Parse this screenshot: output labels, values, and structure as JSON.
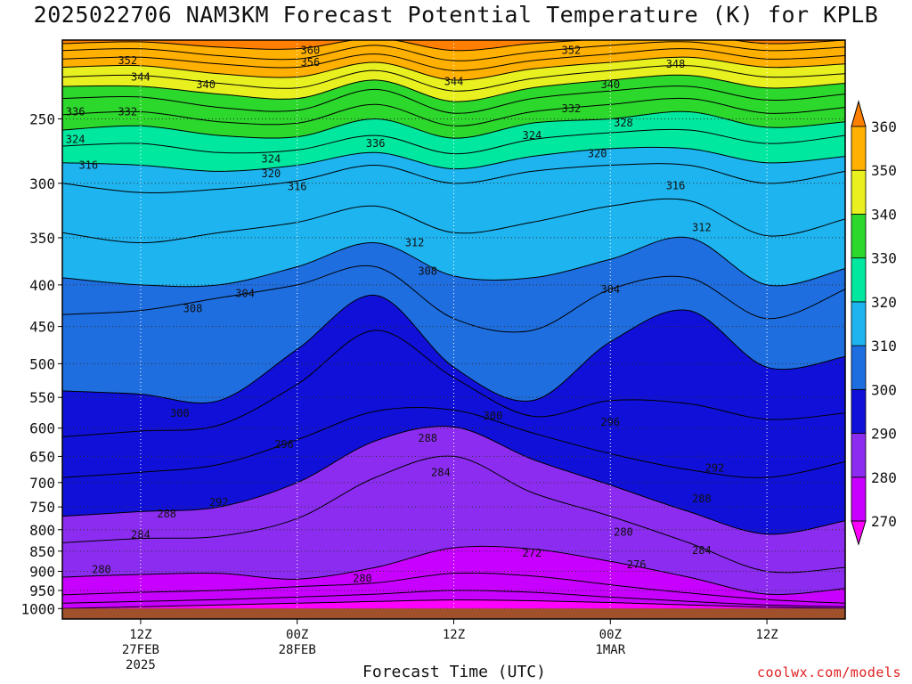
{
  "chart_data": {
    "type": "heatmap",
    "title": "2025022706 NAM3KM Forecast Potential Temperature (K) for KPLB",
    "xlabel": "Forecast Time (UTC)",
    "ylabel": "",
    "x_axis": {
      "ticks": [
        {
          "hour": 6,
          "line1": "12Z",
          "line2": "27FEB",
          "line3": "2025"
        },
        {
          "hour": 18,
          "line1": "00Z",
          "line2": "28FEB",
          "line3": ""
        },
        {
          "hour": 30,
          "line1": "12Z",
          "line2": "",
          "line3": ""
        },
        {
          "hour": 42,
          "line1": "00Z",
          "line2": "1MAR",
          "line3": ""
        },
        {
          "hour": 54,
          "line1": "12Z",
          "line2": "",
          "line3": ""
        }
      ],
      "range_hours": [
        0,
        60
      ]
    },
    "y_axis": {
      "ticks": [
        250,
        300,
        350,
        400,
        450,
        500,
        550,
        600,
        650,
        700,
        750,
        800,
        850,
        900,
        950,
        1000
      ],
      "tick_labels": [
        "250",
        "300",
        "350",
        "400",
        "450",
        "500",
        "550",
        "600",
        "650",
        "700",
        "750",
        "800",
        "850",
        "900",
        "950",
        "1000"
      ],
      "range_hpa": [
        1030,
        200
      ],
      "scale": "log-pressure"
    },
    "colorbar": {
      "levels": [
        270,
        280,
        290,
        300,
        310,
        320,
        330,
        340,
        350,
        360
      ],
      "labels": [
        "270",
        "280",
        "290",
        "300",
        "310",
        "320",
        "330",
        "340",
        "350",
        "360"
      ],
      "colors": [
        "#ff00ff",
        "#c800ff",
        "#8c2cf0",
        "#1010d8",
        "#1e6ee0",
        "#1eb4f0",
        "#00e8a0",
        "#2cd82c",
        "#e8f020",
        "#ffb000",
        "#ff8000"
      ]
    },
    "contour_interval": 2,
    "isentropes": [
      {
        "theta": 270,
        "p": [
          1000,
          995,
          990,
          985,
          980,
          976,
          978,
          983,
          990,
          996,
          1000
        ]
      },
      {
        "theta": 272,
        "p": [
          985,
          980,
          975,
          968,
          960,
          950,
          955,
          968,
          980,
          990,
          995
        ]
      },
      {
        "theta": 276,
        "p": [
          962,
          955,
          950,
          940,
          930,
          905,
          912,
          935,
          957,
          975,
          985
        ]
      },
      {
        "theta": 280,
        "p": [
          915,
          908,
          905,
          920,
          890,
          842,
          845,
          875,
          915,
          960,
          945
        ]
      },
      {
        "theta": 284,
        "p": [
          830,
          820,
          815,
          775,
          690,
          650,
          720,
          770,
          830,
          900,
          890
        ]
      },
      {
        "theta": 288,
        "p": [
          770,
          760,
          750,
          700,
          622,
          598,
          655,
          705,
          760,
          810,
          780
        ]
      },
      {
        "theta": 292,
        "p": [
          690,
          680,
          665,
          620,
          572,
          570,
          608,
          645,
          675,
          690,
          660
        ]
      },
      {
        "theta": 296,
        "p": [
          615,
          605,
          595,
          530,
          455,
          520,
          580,
          555,
          560,
          585,
          575
        ]
      },
      {
        "theta": 300,
        "p": [
          540,
          545,
          555,
          480,
          412,
          505,
          555,
          470,
          430,
          505,
          490
        ]
      },
      {
        "theta": 304,
        "p": [
          435,
          430,
          415,
          400,
          380,
          440,
          455,
          405,
          392,
          440,
          405
        ]
      },
      {
        "theta": 308,
        "p": [
          392,
          400,
          400,
          380,
          355,
          390,
          392,
          372,
          350,
          400,
          382
        ]
      },
      {
        "theta": 312,
        "p": [
          345,
          355,
          345,
          335,
          320,
          345,
          335,
          320,
          315,
          348,
          332
        ]
      },
      {
        "theta": 316,
        "p": [
          300,
          308,
          305,
          298,
          285,
          300,
          290,
          285,
          285,
          300,
          290
        ]
      },
      {
        "theta": 320,
        "p": [
          283,
          285,
          290,
          285,
          275,
          288,
          278,
          272,
          272,
          283,
          278
        ]
      },
      {
        "theta": 324,
        "p": [
          270,
          268,
          275,
          273,
          262,
          276,
          265,
          260,
          258,
          268,
          262
        ]
      },
      {
        "theta": 328,
        "p": [
          258,
          255,
          262,
          263,
          250,
          264,
          253,
          250,
          245,
          256,
          252
        ]
      },
      {
        "theta": 332,
        "p": [
          247,
          245,
          252,
          253,
          240,
          255,
          245,
          240,
          236,
          246,
          242
        ]
      },
      {
        "theta": 336,
        "p": [
          236,
          235,
          242,
          244,
          230,
          246,
          236,
          231,
          228,
          237,
          233
        ]
      },
      {
        "theta": 340,
        "p": [
          228,
          228,
          233,
          236,
          224,
          238,
          229,
          224,
          221,
          229,
          226
        ]
      },
      {
        "theta": 344,
        "p": [
          222,
          221,
          226,
          229,
          218,
          231,
          223,
          218,
          215,
          222,
          220
        ]
      },
      {
        "theta": 348,
        "p": [
          216,
          215,
          220,
          222,
          213,
          224,
          217,
          213,
          210,
          216,
          214
        ]
      },
      {
        "theta": 352,
        "p": [
          211,
          210,
          214,
          216,
          208,
          218,
          212,
          208,
          205,
          211,
          209
        ]
      },
      {
        "theta": 356,
        "p": [
          206,
          205,
          209,
          211,
          203,
          212,
          207,
          203,
          201,
          206,
          204
        ]
      },
      {
        "theta": 360,
        "p": [
          202,
          201,
          204,
          205,
          199,
          206,
          202,
          199,
          197,
          202,
          200
        ]
      }
    ],
    "contour_labels": [
      {
        "text": "352",
        "hour": 5,
        "p": 212
      },
      {
        "text": "360",
        "hour": 19,
        "p": 206
      },
      {
        "text": "356",
        "hour": 19,
        "p": 213
      },
      {
        "text": "352",
        "hour": 39,
        "p": 206
      },
      {
        "text": "348",
        "hour": 47,
        "p": 214
      },
      {
        "text": "344",
        "hour": 6,
        "p": 222
      },
      {
        "text": "340",
        "hour": 11,
        "p": 227
      },
      {
        "text": "344",
        "hour": 30,
        "p": 225
      },
      {
        "text": "340",
        "hour": 42,
        "p": 227
      },
      {
        "text": "336",
        "hour": 1,
        "p": 245
      },
      {
        "text": "332",
        "hour": 5,
        "p": 245
      },
      {
        "text": "332",
        "hour": 39,
        "p": 243
      },
      {
        "text": "328",
        "hour": 43,
        "p": 253
      },
      {
        "text": "324",
        "hour": 1,
        "p": 265
      },
      {
        "text": "336",
        "hour": 24,
        "p": 268
      },
      {
        "text": "324",
        "hour": 36,
        "p": 262
      },
      {
        "text": "320",
        "hour": 41,
        "p": 276
      },
      {
        "text": "324",
        "hour": 16,
        "p": 280
      },
      {
        "text": "316",
        "hour": 2,
        "p": 285
      },
      {
        "text": "320",
        "hour": 16,
        "p": 292
      },
      {
        "text": "316",
        "hour": 18,
        "p": 303
      },
      {
        "text": "316",
        "hour": 47,
        "p": 302
      },
      {
        "text": "312",
        "hour": 27,
        "p": 355
      },
      {
        "text": "312",
        "hour": 49,
        "p": 340
      },
      {
        "text": "308",
        "hour": 28,
        "p": 385
      },
      {
        "text": "304",
        "hour": 14,
        "p": 410
      },
      {
        "text": "308",
        "hour": 10,
        "p": 428
      },
      {
        "text": "304",
        "hour": 42,
        "p": 405
      },
      {
        "text": "300",
        "hour": 9,
        "p": 575
      },
      {
        "text": "300",
        "hour": 33,
        "p": 580
      },
      {
        "text": "296",
        "hour": 17,
        "p": 628
      },
      {
        "text": "296",
        "hour": 42,
        "p": 590
      },
      {
        "text": "288",
        "hour": 28,
        "p": 617
      },
      {
        "text": "284",
        "hour": 29,
        "p": 680
      },
      {
        "text": "292",
        "hour": 50,
        "p": 672
      },
      {
        "text": "292",
        "hour": 12,
        "p": 740
      },
      {
        "text": "288",
        "hour": 8,
        "p": 765
      },
      {
        "text": "288",
        "hour": 49,
        "p": 733
      },
      {
        "text": "284",
        "hour": 6,
        "p": 812
      },
      {
        "text": "280",
        "hour": 43,
        "p": 805
      },
      {
        "text": "284",
        "hour": 49,
        "p": 848
      },
      {
        "text": "272",
        "hour": 36,
        "p": 855
      },
      {
        "text": "276",
        "hour": 44,
        "p": 883
      },
      {
        "text": "280",
        "hour": 3,
        "p": 895
      },
      {
        "text": "280",
        "hour": 23,
        "p": 918
      }
    ],
    "terrain": {
      "surface_p": 1000,
      "color": "#a0502a"
    },
    "grid": true
  },
  "xlabel_text": "Forecast Time (UTC)",
  "watermark": "coolwx.com/models"
}
